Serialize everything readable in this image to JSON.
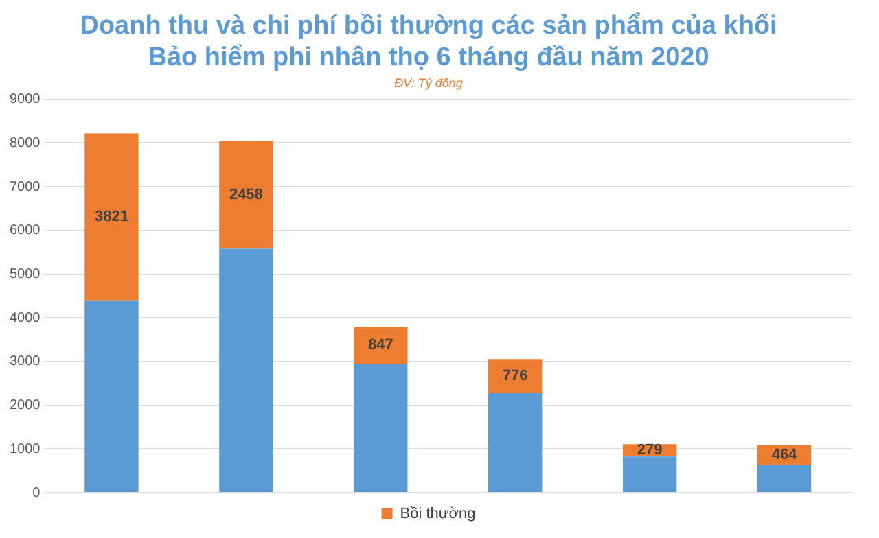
{
  "chart_data": {
    "type": "bar",
    "title": "Doanh thu và chi phí bồi thường các sản phẩm của khối\nBảo hiểm phi nhân thọ 6 tháng đầu năm 2020",
    "subtitle": "ĐV: Tỷ đồng",
    "categories": [
      null,
      null,
      null,
      null,
      null,
      null
    ],
    "series": [
      {
        "color": "#5b9bd5",
        "values": [
          4400,
          5580,
          2950,
          2280,
          830,
          630
        ]
      },
      {
        "name": "Bồi thường",
        "color": "#ed7d31",
        "values": [
          3821,
          2458,
          847,
          776,
          279,
          464
        ],
        "value_labels": [
          "3821",
          "2458",
          "847",
          "776",
          "279",
          "464"
        ]
      }
    ],
    "stacked": true,
    "ylim": [
      0,
      9000
    ],
    "yticks": [
      0,
      1000,
      2000,
      3000,
      4000,
      5000,
      6000,
      7000,
      8000,
      9000
    ],
    "grid": "y",
    "legend": "bottom"
  }
}
